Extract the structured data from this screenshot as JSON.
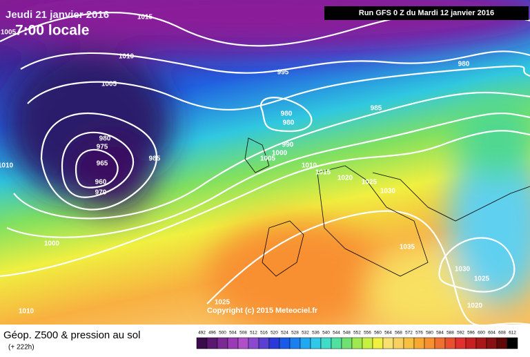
{
  "header": {
    "date": "Jeudi 21 janvier 2016",
    "time": "7:00 locale",
    "run": "Run GFS 0 Z du Mardi 12 janvier 2016"
  },
  "isobar_labels": [
    "1015",
    "1005",
    "1010",
    "995",
    "980",
    "1005",
    "985",
    "980",
    "980",
    "980",
    "975",
    "990",
    "1000",
    "1005",
    "985",
    "965",
    "1010",
    "1015",
    "960",
    "970",
    "1010",
    "1020",
    "1025",
    "1030",
    "1035",
    "1000",
    "1030",
    "1025",
    "1020",
    "1025",
    "1010"
  ],
  "copyright": "Copyright (c) 2015 Meteociel.fr",
  "footer": {
    "title": "Géop. Z500 & pression au sol",
    "lead": "(+ 222h)"
  },
  "scale": {
    "values": [
      492,
      496,
      500,
      504,
      508,
      512,
      516,
      520,
      524,
      528,
      532,
      536,
      540,
      544,
      548,
      552,
      556,
      560,
      564,
      568,
      572,
      576,
      580,
      584,
      588,
      592,
      596,
      600,
      604,
      608,
      612
    ],
    "colors": [
      "#3a0a4a",
      "#5a1870",
      "#7a2a94",
      "#9a3ab4",
      "#b050c8",
      "#8a4ad0",
      "#5a40d0",
      "#2a3ad8",
      "#1a5ae8",
      "#1a80f0",
      "#20a8f0",
      "#30c8e8",
      "#40dcc8",
      "#50e0a0",
      "#70e070",
      "#a0e850",
      "#c8f040",
      "#f0f040",
      "#f8e070",
      "#f8d060",
      "#f8c040",
      "#f8a830",
      "#f89030",
      "#f07030",
      "#e85030",
      "#e03030",
      "#c82020",
      "#a81818",
      "#881010",
      "#600808",
      "#000000"
    ]
  }
}
